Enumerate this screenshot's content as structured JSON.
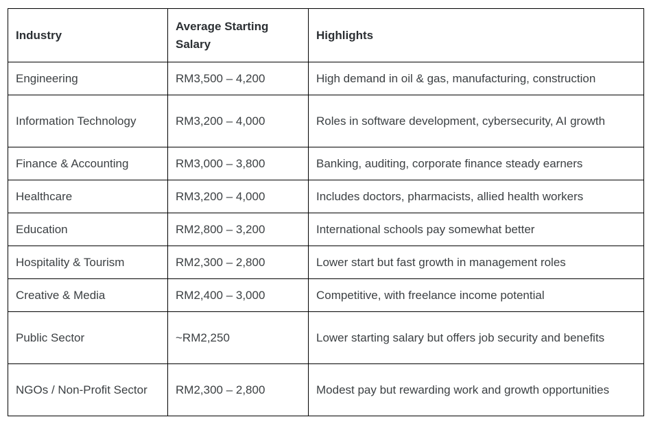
{
  "table": {
    "columns": [
      {
        "label": "Industry"
      },
      {
        "label": "Average Starting Salary"
      },
      {
        "label": "Highlights"
      }
    ],
    "rows": [
      {
        "industry": "Engineering",
        "salary": "RM3,500 – 4,200",
        "highlights": "High demand in oil & gas, manufacturing, construction"
      },
      {
        "industry": "Information Technology",
        "salary": "RM3,200 – 4,000",
        "highlights": "Roles in software development, cybersecurity, AI growth"
      },
      {
        "industry": "Finance & Accounting",
        "salary": "RM3,000 – 3,800",
        "highlights": "Banking, auditing, corporate finance steady earners"
      },
      {
        "industry": "Healthcare",
        "salary": "RM3,200 – 4,000",
        "highlights": "Includes doctors, pharmacists, allied health workers"
      },
      {
        "industry": "Education",
        "salary": "RM2,800 – 3,200",
        "highlights": "International schools pay somewhat better"
      },
      {
        "industry": "Hospitality & Tourism",
        "salary": "RM2,300 – 2,800",
        "highlights": "Lower start but fast growth in management roles"
      },
      {
        "industry": "Creative & Media",
        "salary": "RM2,400 – 3,000",
        "highlights": "Competitive, with freelance income potential"
      },
      {
        "industry": "Public Sector",
        "salary": "~RM2,250",
        "highlights": "Lower starting salary but offers job security and benefits"
      },
      {
        "industry": "NGOs / Non-Profit Sector",
        "salary": "RM2,300 – 2,800",
        "highlights": "Modest pay but rewarding work and growth opportunities"
      }
    ]
  },
  "colors": {
    "border": "#000000",
    "text": "#3c4043",
    "background": "#ffffff"
  }
}
